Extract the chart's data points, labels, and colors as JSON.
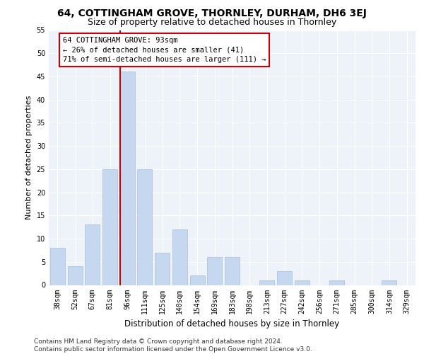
{
  "title1": "64, COTTINGHAM GROVE, THORNLEY, DURHAM, DH6 3EJ",
  "title2": "Size of property relative to detached houses in Thornley",
  "xlabel": "Distribution of detached houses by size in Thornley",
  "ylabel": "Number of detached properties",
  "categories": [
    "38sqm",
    "52sqm",
    "67sqm",
    "81sqm",
    "96sqm",
    "111sqm",
    "125sqm",
    "140sqm",
    "154sqm",
    "169sqm",
    "183sqm",
    "198sqm",
    "213sqm",
    "227sqm",
    "242sqm",
    "256sqm",
    "271sqm",
    "285sqm",
    "300sqm",
    "314sqm",
    "329sqm"
  ],
  "values": [
    8,
    4,
    13,
    25,
    46,
    25,
    7,
    12,
    2,
    6,
    6,
    0,
    1,
    3,
    1,
    0,
    1,
    0,
    0,
    1,
    0
  ],
  "bar_color": "#c5d8f0",
  "bar_edgecolor": "#aabdd8",
  "annotation_text": "64 COTTINGHAM GROVE: 93sqm\n← 26% of detached houses are smaller (41)\n71% of semi-detached houses are larger (111) →",
  "vline_color": "#cc0000",
  "annotation_box_edgecolor": "#cc0000",
  "ylim": [
    0,
    55
  ],
  "yticks": [
    0,
    5,
    10,
    15,
    20,
    25,
    30,
    35,
    40,
    45,
    50,
    55
  ],
  "background_color": "#eef2f9",
  "footer_text": "Contains HM Land Registry data © Crown copyright and database right 2024.\nContains public sector information licensed under the Open Government Licence v3.0.",
  "title1_fontsize": 10,
  "title2_fontsize": 9,
  "xlabel_fontsize": 8.5,
  "ylabel_fontsize": 8,
  "tick_fontsize": 7,
  "annotation_fontsize": 7.5,
  "footer_fontsize": 6.5
}
